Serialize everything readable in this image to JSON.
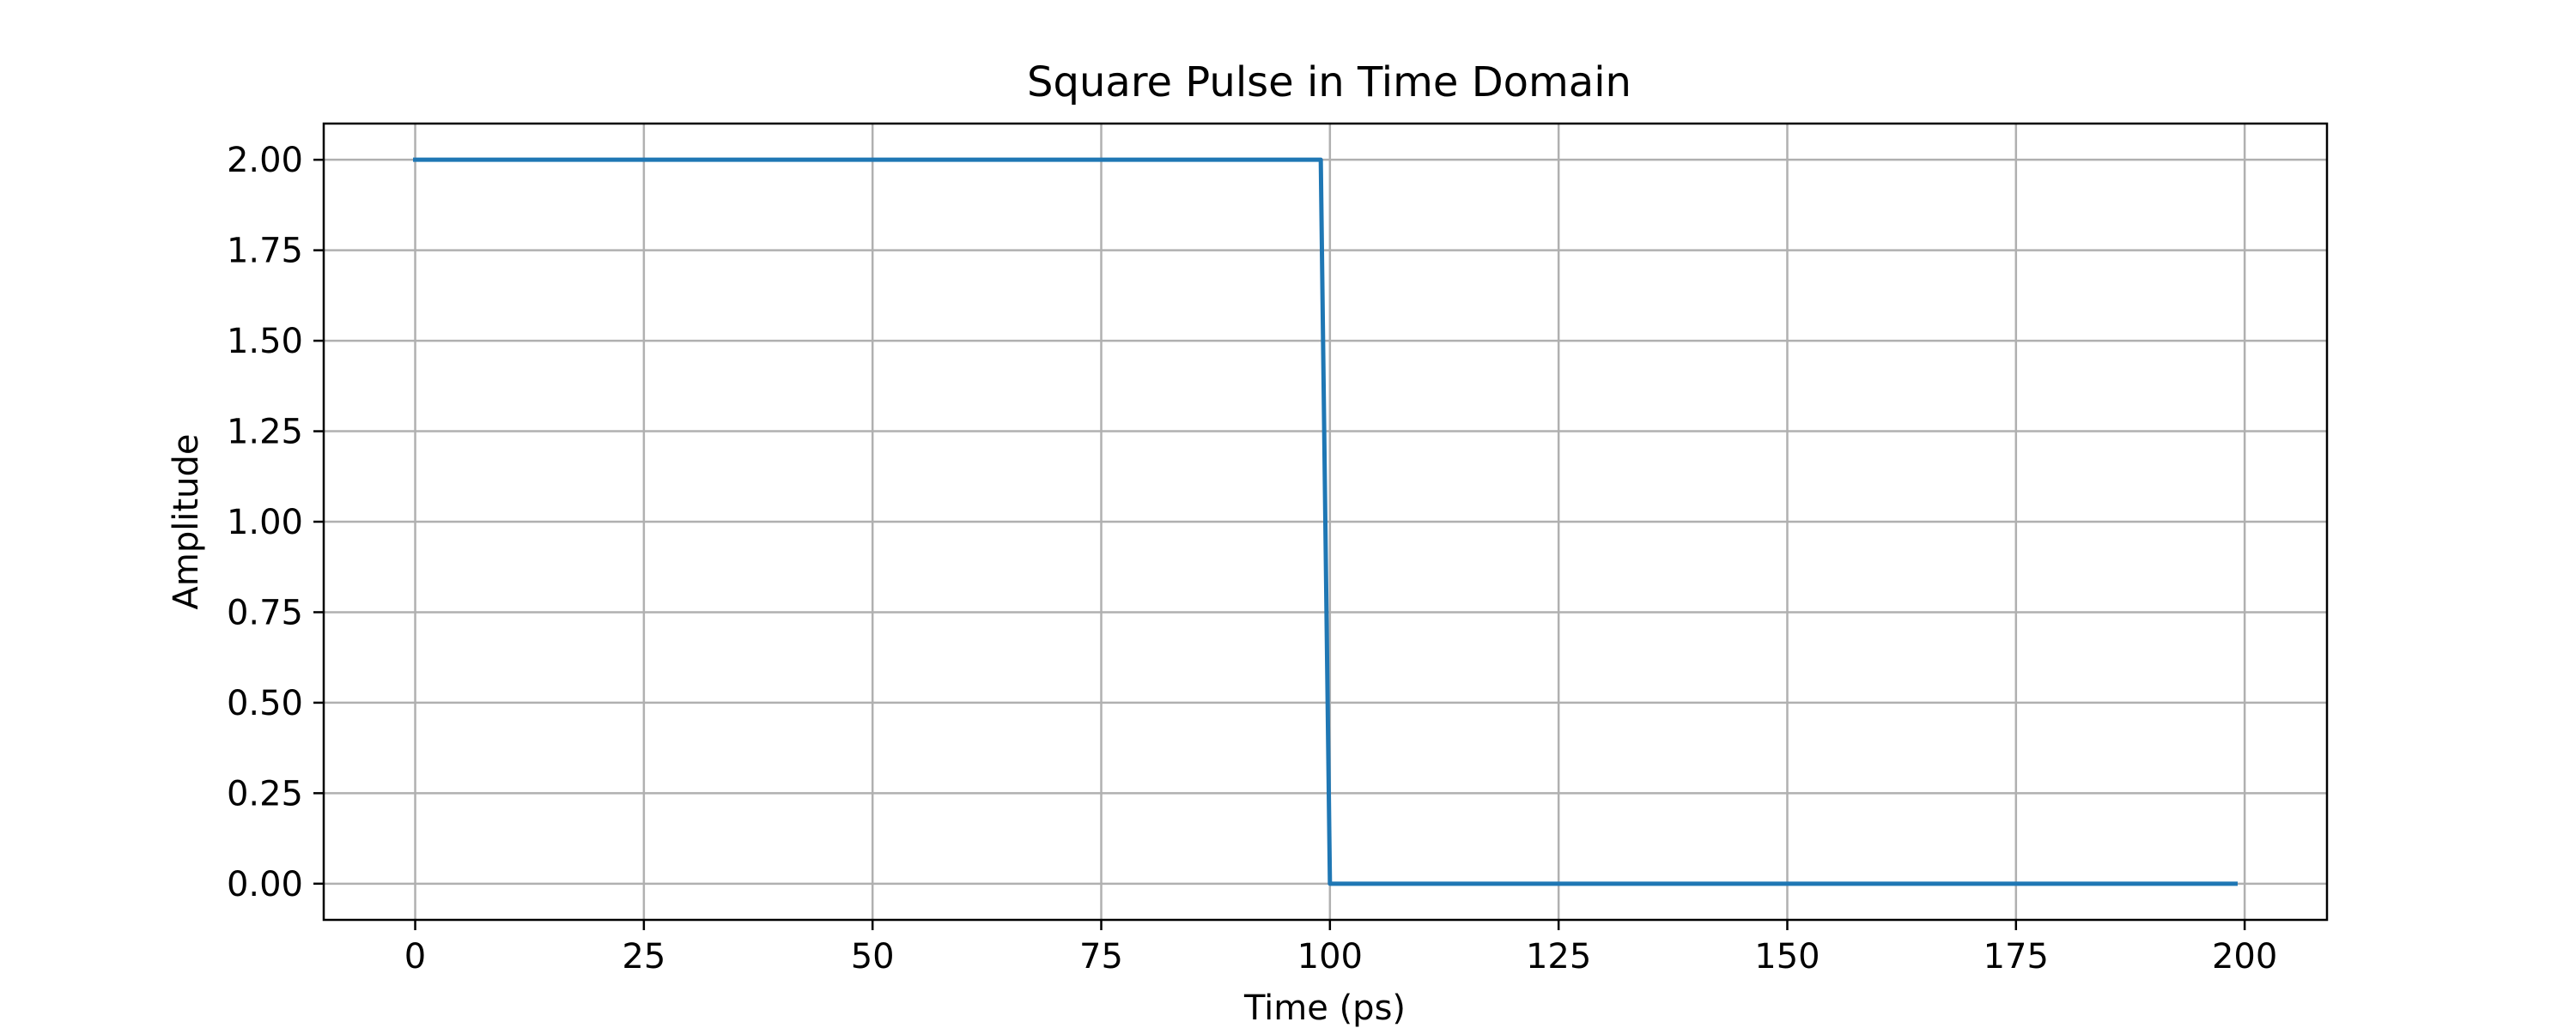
{
  "chart_data": {
    "type": "line",
    "title": "Square Pulse in Time Domain",
    "xlabel": "Time (ps)",
    "ylabel": "Amplitude",
    "xlim": [
      -10,
      209
    ],
    "ylim": [
      -0.1,
      2.1
    ],
    "x_ticks": [
      0,
      25,
      50,
      75,
      100,
      125,
      150,
      175,
      200
    ],
    "x_tick_labels": [
      "0",
      "25",
      "50",
      "75",
      "100",
      "125",
      "150",
      "175",
      "200"
    ],
    "y_ticks": [
      0,
      0.25,
      0.5,
      0.75,
      1,
      1.25,
      1.5,
      1.75,
      2
    ],
    "y_tick_labels": [
      "0.00",
      "0.25",
      "0.50",
      "0.75",
      "1.00",
      "1.25",
      "1.50",
      "1.75",
      "2.00"
    ],
    "grid": true,
    "series": [
      {
        "color": "#1f77b4",
        "x": [
          0,
          99,
          100,
          199
        ],
        "y": [
          2,
          2,
          0,
          0
        ]
      }
    ]
  }
}
